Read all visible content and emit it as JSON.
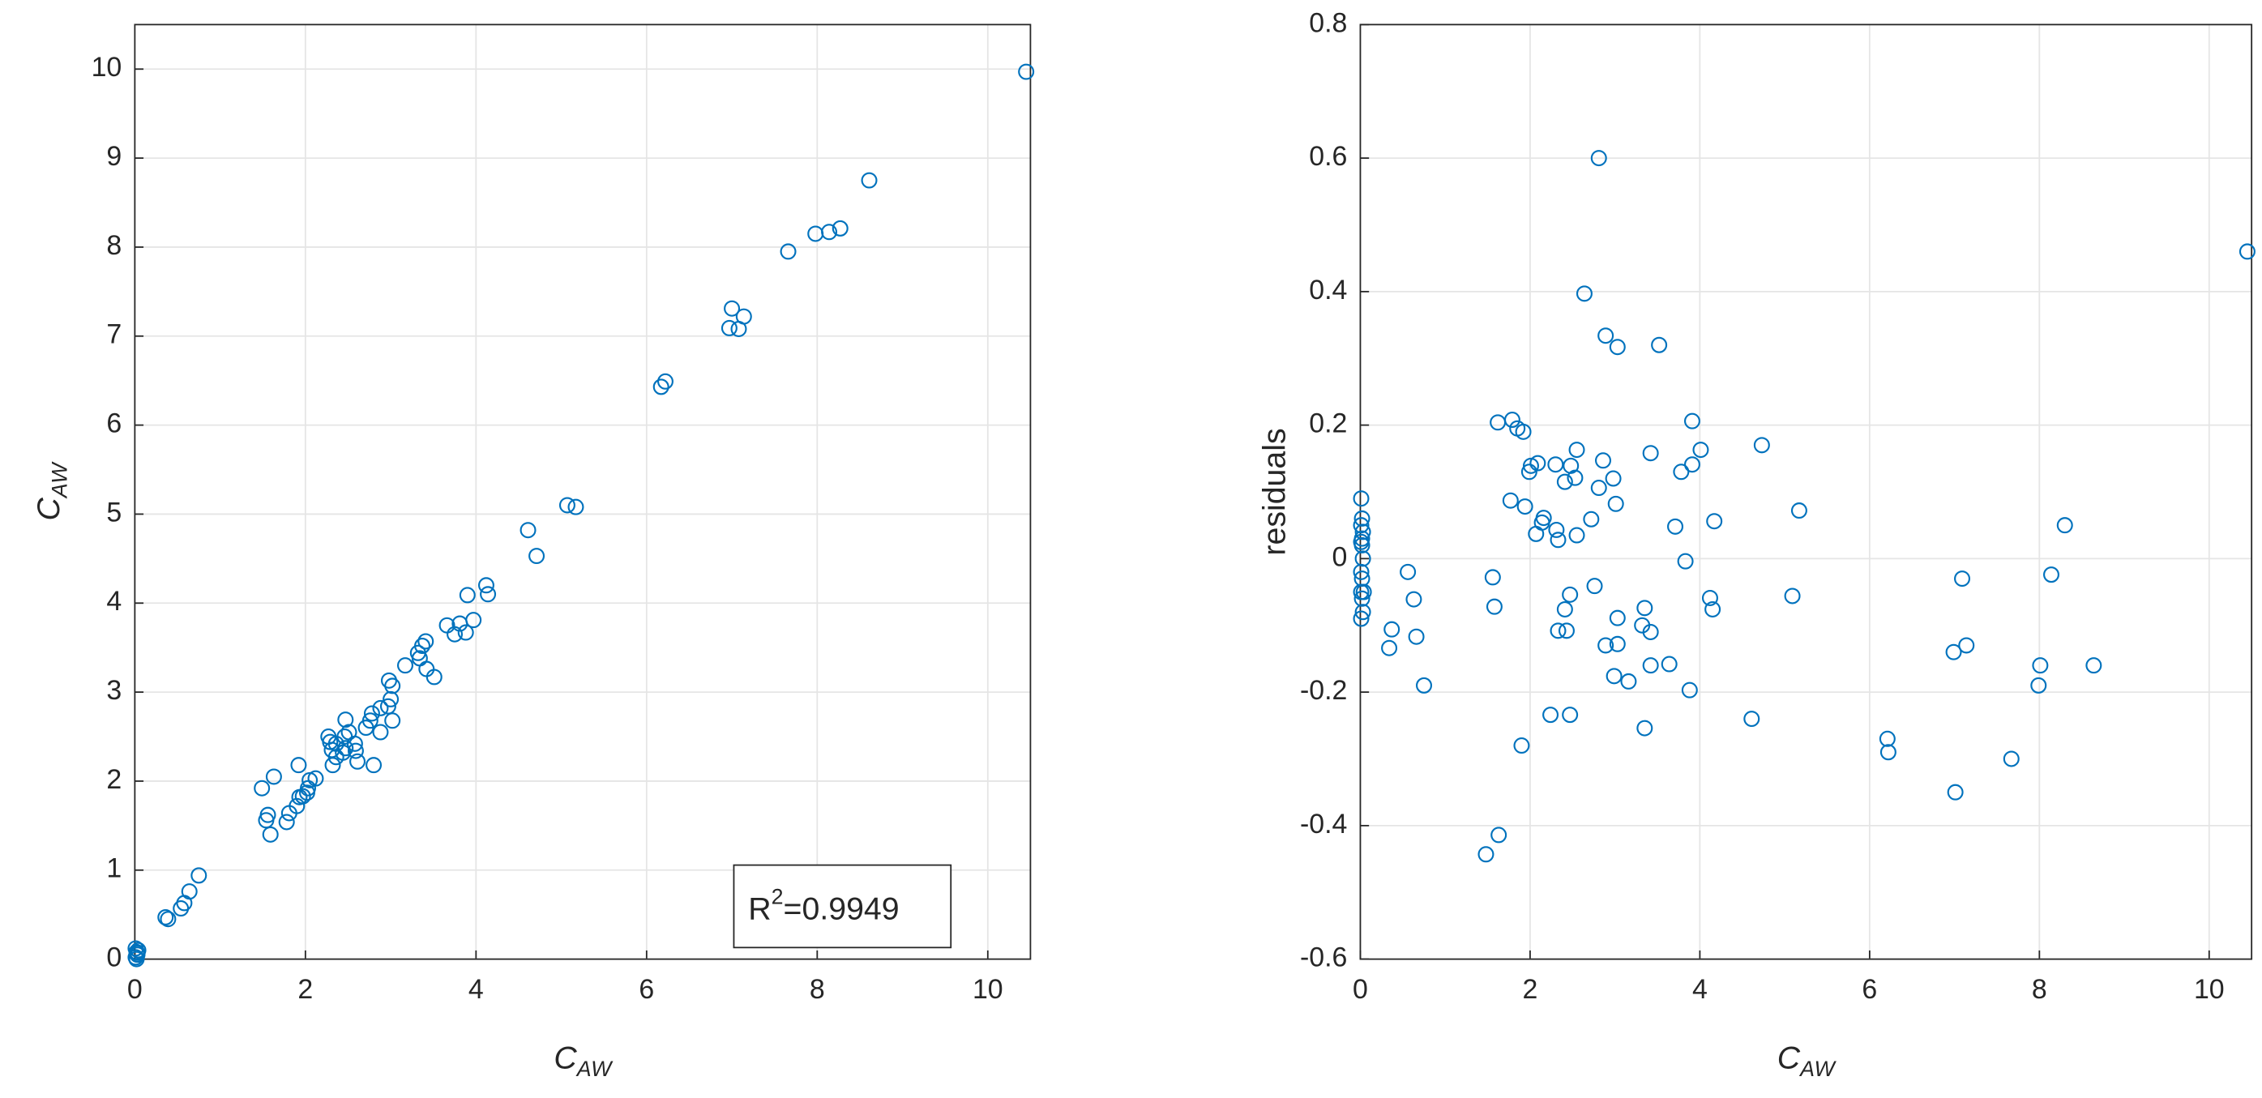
{
  "chart_data": [
    {
      "type": "scatter",
      "color": "#0072bd",
      "grid": true,
      "xlabel": {
        "base": "C",
        "sub": "AW"
      },
      "ylabel": {
        "base": "C",
        "sub": "AW"
      },
      "annotation": {
        "base": "R",
        "sup": "2",
        "rest": "=0.9949"
      },
      "xlim": [
        0,
        10.5
      ],
      "ylim": [
        0,
        10.5
      ],
      "xticks": [
        0,
        2,
        4,
        6,
        8,
        10
      ],
      "yticks": [
        0,
        1,
        2,
        3,
        4,
        5,
        6,
        7,
        8,
        9,
        10
      ],
      "x": [
        10.45,
        8.61,
        8.27,
        8.14,
        7.98,
        7.66,
        7.14,
        7.08,
        7.0,
        6.97,
        6.22,
        6.17,
        5.17,
        5.07,
        4.61,
        4.71,
        4.12,
        4.14,
        3.9,
        3.97,
        3.81,
        3.88,
        3.66,
        3.75,
        3.41,
        3.37,
        3.32,
        3.34,
        3.42,
        3.51,
        3.17,
        2.98,
        3.02,
        3.0,
        2.97,
        3.02,
        2.88,
        2.88,
        2.78,
        2.76,
        2.71,
        2.8,
        2.47,
        2.51,
        2.46,
        2.58,
        2.47,
        2.59,
        2.44,
        2.61,
        2.36,
        2.31,
        2.36,
        2.32,
        2.29,
        2.27,
        2.12,
        2.05,
        2.03,
        2.02,
        1.97,
        1.93,
        1.9,
        1.92,
        1.81,
        1.78,
        1.63,
        1.56,
        1.54,
        1.59,
        1.49,
        0.75,
        0.64,
        0.58,
        0.54,
        0.36,
        0.39,
        0.01,
        0.02,
        0.03,
        0.04,
        0.01,
        0.02,
        0.03
      ],
      "y": [
        9.97,
        8.75,
        8.21,
        8.17,
        8.15,
        7.95,
        7.22,
        7.08,
        7.31,
        7.09,
        6.49,
        6.43,
        5.08,
        5.1,
        4.82,
        4.53,
        4.2,
        4.1,
        4.09,
        3.81,
        3.77,
        3.67,
        3.75,
        3.65,
        3.57,
        3.52,
        3.44,
        3.38,
        3.26,
        3.17,
        3.3,
        3.13,
        3.07,
        2.92,
        2.84,
        2.68,
        2.82,
        2.55,
        2.76,
        2.68,
        2.6,
        2.18,
        2.69,
        2.55,
        2.5,
        2.42,
        2.37,
        2.34,
        2.32,
        2.22,
        2.27,
        2.35,
        2.42,
        2.18,
        2.44,
        2.5,
        2.03,
        2.01,
        1.92,
        1.87,
        1.83,
        1.82,
        1.72,
        2.18,
        1.64,
        1.54,
        2.05,
        1.62,
        1.56,
        1.4,
        1.92,
        0.94,
        0.76,
        0.63,
        0.57,
        0.47,
        0.45,
        0.12,
        0.08,
        0.05,
        0.1,
        0.02,
        0.0,
        0.07
      ]
    },
    {
      "type": "scatter",
      "color": "#0072bd",
      "grid": true,
      "xlabel": {
        "base": "C",
        "sub": "AW"
      },
      "ylabel": "residuals",
      "xlim": [
        0,
        10.5
      ],
      "ylim": [
        -0.6,
        0.8
      ],
      "xticks": [
        0,
        2,
        4,
        6,
        8,
        10
      ],
      "yticks": [
        -0.6,
        -0.4,
        -0.2,
        0,
        0.2,
        0.4,
        0.6,
        0.8
      ],
      "x": [
        10.45,
        8.3,
        8.14,
        8.01,
        7.99,
        8.64,
        7.67,
        7.09,
        7.14,
        6.99,
        7.01,
        6.21,
        6.22,
        5.17,
        5.09,
        4.73,
        4.61,
        4.17,
        4.15,
        4.12,
        4.01,
        3.91,
        3.91,
        3.88,
        3.83,
        3.78,
        3.71,
        3.64,
        3.52,
        3.42,
        3.42,
        3.42,
        3.35,
        3.32,
        3.35,
        3.16,
        3.03,
        3.01,
        2.98,
        3.03,
        3.03,
        2.99,
        2.89,
        2.86,
        2.89,
        2.81,
        2.81,
        2.72,
        2.76,
        2.64,
        2.55,
        2.53,
        2.48,
        2.55,
        2.41,
        2.47,
        2.43,
        2.41,
        2.47,
        2.3,
        2.31,
        2.33,
        2.33,
        2.24,
        2.09,
        2.16,
        2.14,
        2.07,
        1.99,
        2.01,
        1.92,
        1.85,
        1.79,
        1.94,
        1.77,
        1.9,
        1.62,
        1.58,
        1.56,
        1.63,
        1.48,
        0.75,
        0.66,
        0.63,
        0.56,
        0.37,
        0.34,
        0.01,
        0.02,
        0.01,
        0.03,
        0.02,
        0.01,
        0.02,
        0.03,
        0.01,
        0.02,
        0.04,
        0.01,
        0.02,
        0.03,
        0.01
      ],
      "y": [
        0.46,
        0.05,
        -0.024,
        -0.16,
        -0.19,
        -0.16,
        -0.3,
        -0.03,
        -0.13,
        -0.14,
        -0.35,
        -0.27,
        -0.29,
        0.072,
        -0.056,
        0.17,
        -0.24,
        0.056,
        -0.076,
        -0.059,
        0.163,
        0.206,
        0.141,
        -0.197,
        -0.004,
        0.13,
        0.048,
        -0.158,
        0.32,
        0.158,
        -0.11,
        -0.16,
        -0.074,
        -0.1,
        -0.254,
        -0.184,
        0.317,
        0.082,
        0.12,
        -0.089,
        -0.128,
        -0.176,
        0.334,
        0.147,
        -0.13,
        0.6,
        0.106,
        0.059,
        -0.041,
        0.397,
        0.163,
        0.121,
        0.139,
        0.035,
        0.115,
        -0.054,
        -0.108,
        -0.076,
        -0.234,
        0.141,
        0.043,
        0.028,
        -0.108,
        -0.234,
        0.143,
        0.061,
        0.054,
        0.037,
        0.13,
        0.139,
        0.19,
        0.195,
        0.208,
        0.078,
        0.087,
        -0.28,
        0.204,
        -0.072,
        -0.028,
        -0.414,
        -0.443,
        -0.19,
        -0.117,
        -0.061,
        -0.02,
        -0.106,
        -0.134,
        0.09,
        0.06,
        0.05,
        0.04,
        0.03,
        0.025,
        0.02,
        0,
        -0.02,
        -0.03,
        -0.05,
        -0.05,
        -0.06,
        -0.08,
        -0.09
      ]
    }
  ]
}
